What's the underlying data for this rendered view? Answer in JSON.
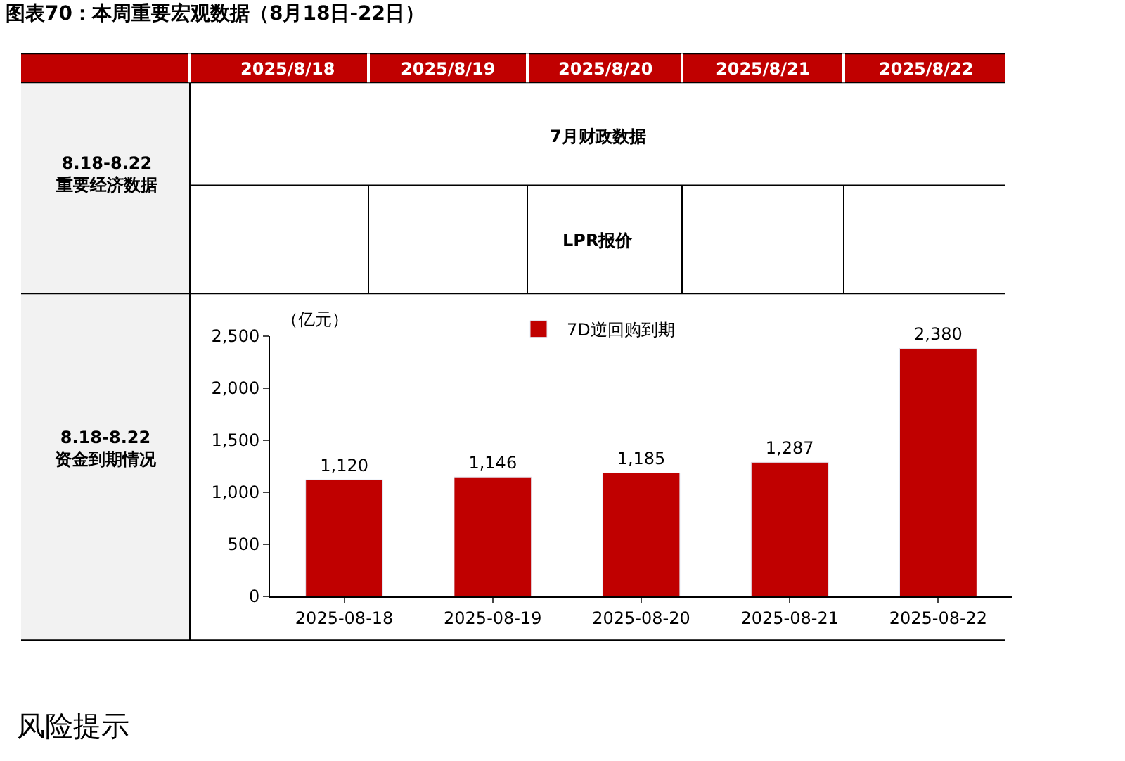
{
  "chart_data": {
    "type": "bar",
    "title": "图表70：本周重要宏观数据（8月18日-22日）",
    "ylabel": "（亿元）",
    "categories": [
      "2025-08-18",
      "2025-08-19",
      "2025-08-20",
      "2025-08-21",
      "2025-08-22"
    ],
    "series": [
      {
        "name": "7D逆回购到期",
        "color": "#c00000",
        "values": [
          1120,
          1146,
          1185,
          1287,
          2380
        ]
      }
    ],
    "value_labels": [
      "1,120",
      "1,146",
      "1,185",
      "1,287",
      "2,380"
    ],
    "ylim": [
      0,
      2500
    ],
    "yticks": [
      0,
      500,
      {
        "value": 1000,
        "label": "1,000"
      },
      {
        "value": 1500,
        "label": "1,500"
      },
      {
        "value": 2000,
        "label": "2,000"
      },
      {
        "value": 2500,
        "label": "2,500"
      }
    ],
    "legend": "top",
    "annotations": [
      "2025/8/18",
      "2025/8/19",
      "2025/8/20",
      "2025/8/21",
      "2025/8/22",
      "8.18-8.22\n重要经济数据",
      "7月财政数据",
      "LPR报价",
      "8.18-8.22\n资金到期情况",
      "风险提示"
    ]
  }
}
